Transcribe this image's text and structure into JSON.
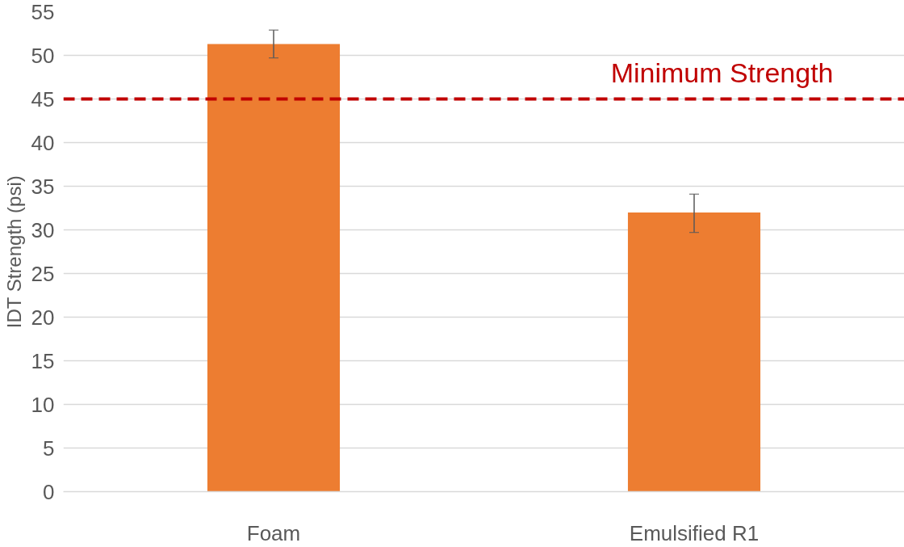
{
  "chart_data": {
    "type": "bar",
    "categories": [
      "Foam",
      "Emulsified R1"
    ],
    "values": [
      51.3,
      32.0
    ],
    "errors": [
      [
        49.7,
        52.9
      ],
      [
        29.7,
        34.1
      ]
    ],
    "color": "#ed7d31",
    "ylabel": "IDT Strength (psi)",
    "ylim": [
      0,
      55
    ],
    "yticks": [
      0,
      5,
      10,
      15,
      20,
      25,
      30,
      35,
      40,
      45,
      50,
      55
    ],
    "grid": "y",
    "ref_lines": [
      {
        "axis": "y",
        "value": 45,
        "label": "Minimum Strength",
        "color": "#c00000",
        "line_style": "dashed"
      }
    ]
  }
}
